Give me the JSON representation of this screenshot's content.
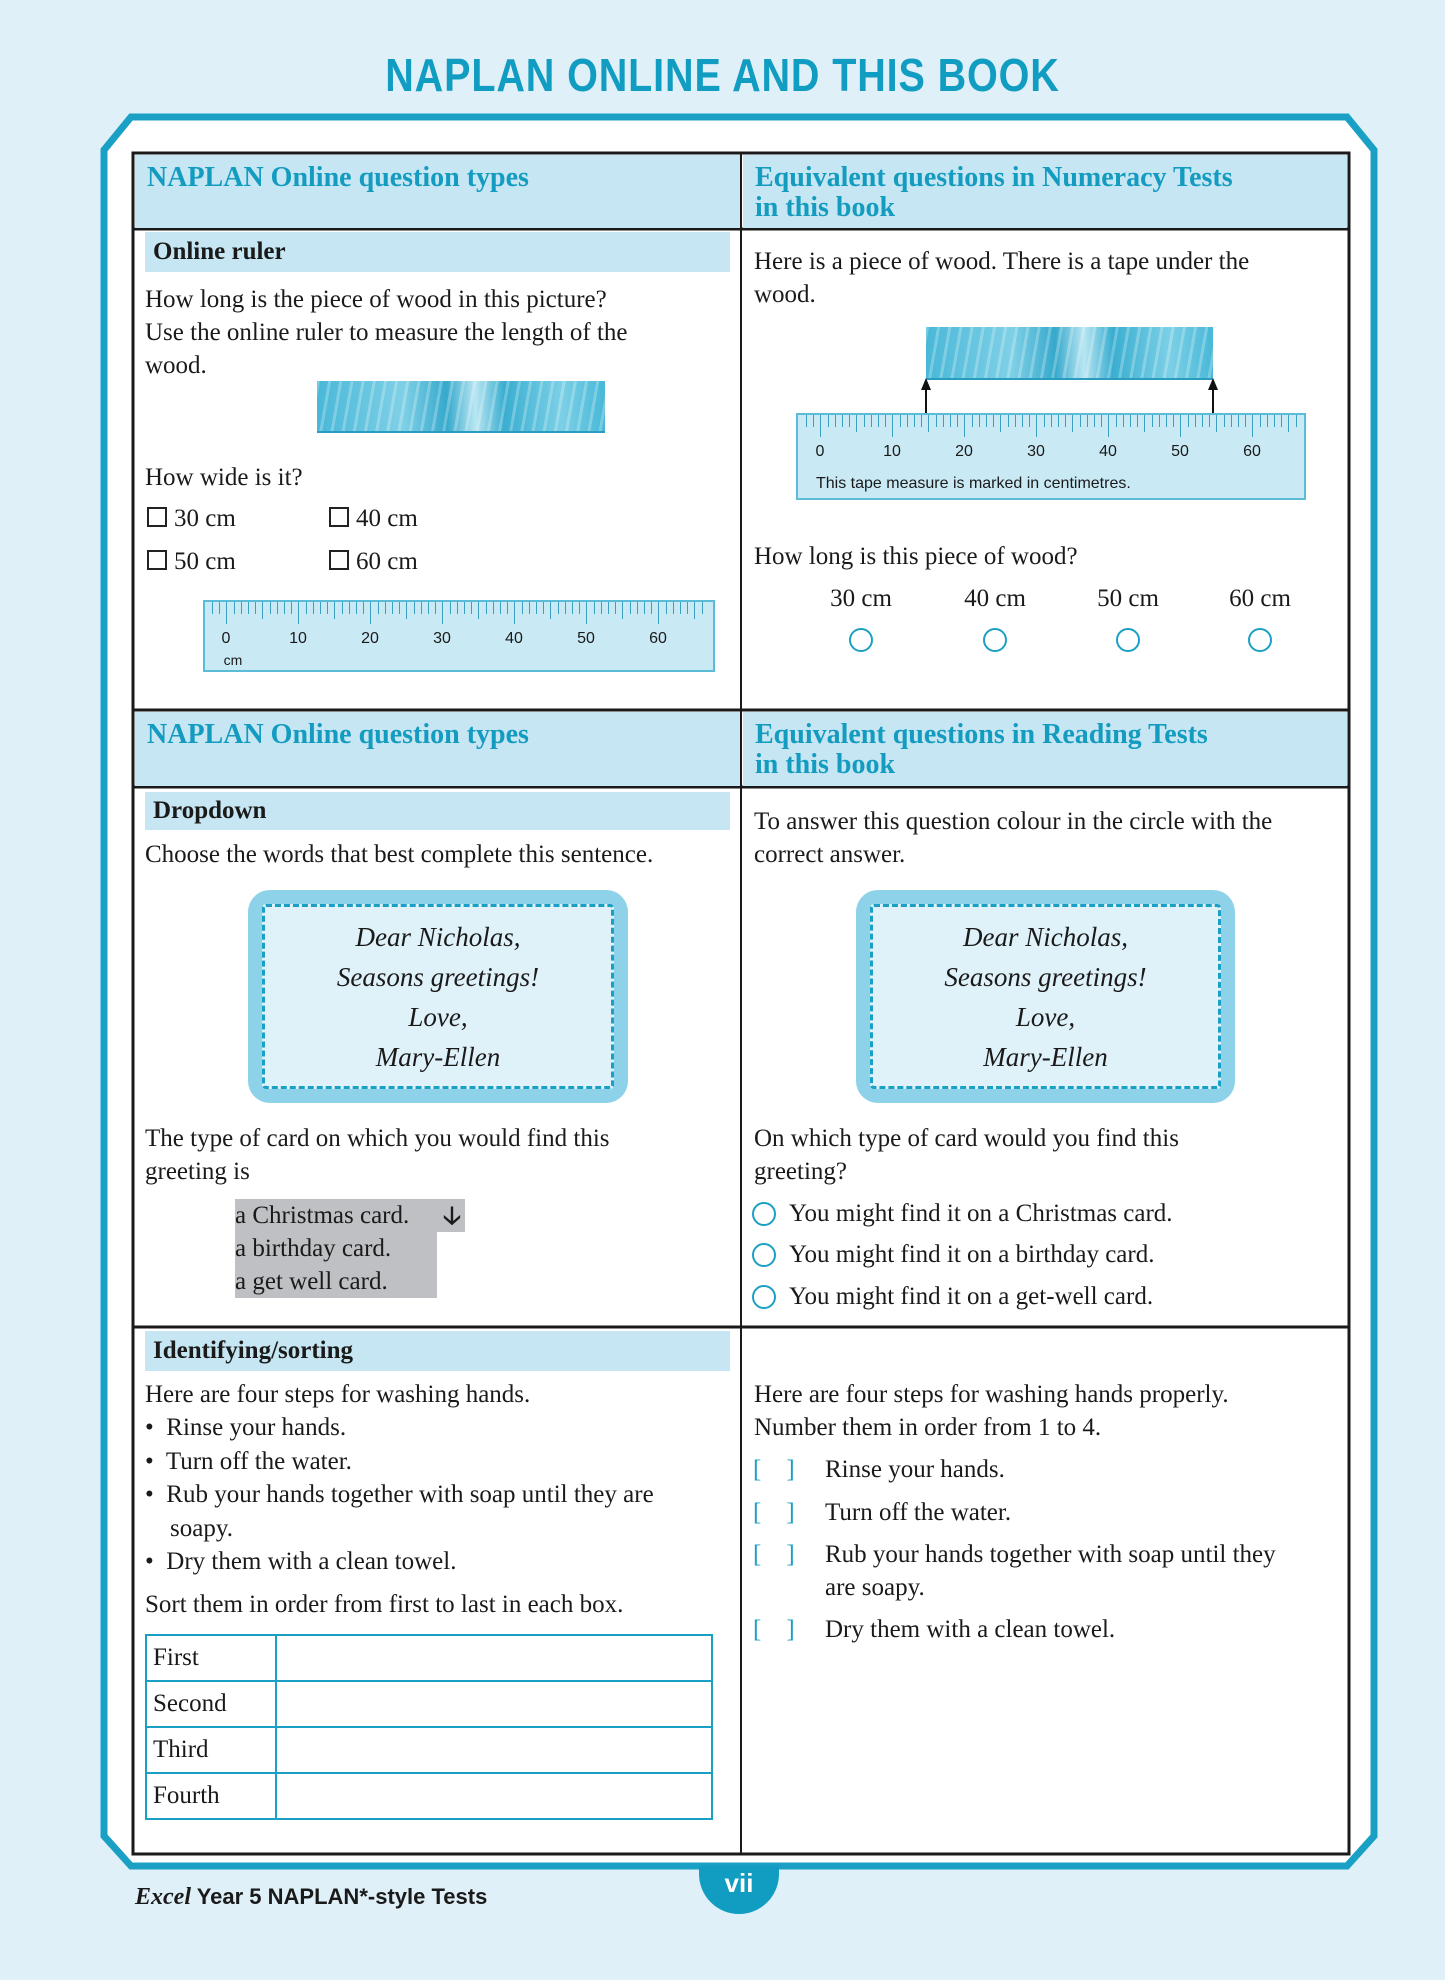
{
  "page_title": "NAPLAN ONLINE AND THIS BOOK",
  "colors": {
    "accent": "#119cc1",
    "header_band": "#c5e6f2",
    "background": "#dff0f8",
    "dropdown": "#bfc0c4"
  },
  "section1": {
    "left_header": "NAPLAN Online question types",
    "right_header_line1": "Equivalent questions in Numeracy Tests",
    "right_header_line2": "in this book",
    "left": {
      "band": "Online ruler",
      "question": [
        "How long is the piece of wood in this picture?",
        "Use the online ruler to measure the length of the",
        "wood."
      ],
      "sub_question": "How wide is it?",
      "options": [
        "30 cm",
        "40 cm",
        "50 cm",
        "60 cm"
      ],
      "ruler_labels": [
        "0",
        "10",
        "20",
        "30",
        "40",
        "50",
        "60"
      ],
      "ruler_unit": "cm"
    },
    "right": {
      "intro": [
        "Here is a piece of wood. There is a tape under the",
        "wood."
      ],
      "tape_labels": [
        "0",
        "10",
        "20",
        "30",
        "40",
        "50",
        "60"
      ],
      "tape_caption": "This tape measure is marked in centimetres.",
      "question": "How long is this piece of wood?",
      "options": [
        "30 cm",
        "40 cm",
        "50 cm",
        "60 cm"
      ]
    }
  },
  "section2": {
    "left_header": "NAPLAN Online question types",
    "right_header_line1": "Equivalent questions in Reading Tests",
    "right_header_line2": "in this book",
    "card_lines": [
      "Dear Nicholas,",
      "Seasons greetings!",
      "Love,",
      "Mary-Ellen"
    ],
    "left": {
      "band": "Dropdown",
      "instruction": "Choose the words that best complete this sentence.",
      "stem": [
        "The type of card on which you would find this",
        "greeting is"
      ],
      "dropdown_options": [
        "a Christmas card.",
        "a birthday card.",
        "a get well card."
      ],
      "dropdown_icon": "arrow-down-icon"
    },
    "right": {
      "instruction": [
        "To answer this question colour in the circle with the",
        "correct answer."
      ],
      "question": [
        "On which type of card would you find this",
        "greeting?"
      ],
      "options": [
        "You might find it on a Christmas card.",
        "You might find it on a birthday card.",
        "You might find it on a get-well card."
      ]
    }
  },
  "section3": {
    "left": {
      "band": "Identifying/sorting",
      "intro": "Here are four steps for washing hands.",
      "bullets": [
        "Rinse your hands.",
        "Turn off the water.",
        "Rub your hands together with soap until they are",
        "soapy.",
        "Dry them with a clean towel."
      ],
      "instruction": "Sort them in order from first to last in each box.",
      "rows": [
        "First",
        "Second",
        "Third",
        "Fourth"
      ]
    },
    "right": {
      "intro": [
        "Here are four steps for washing hands properly.",
        "Number them in order from 1 to 4."
      ],
      "bracket": "[    ]",
      "items": [
        "Rinse your hands.",
        "Turn off the water.",
        "Rub your hands together with soap until they",
        "are soapy.",
        "Dry them with a clean towel."
      ]
    }
  },
  "footer": {
    "brand": "Excel",
    "title": "Year 5 NAPLAN*-style Tests",
    "page_number": "vii"
  }
}
